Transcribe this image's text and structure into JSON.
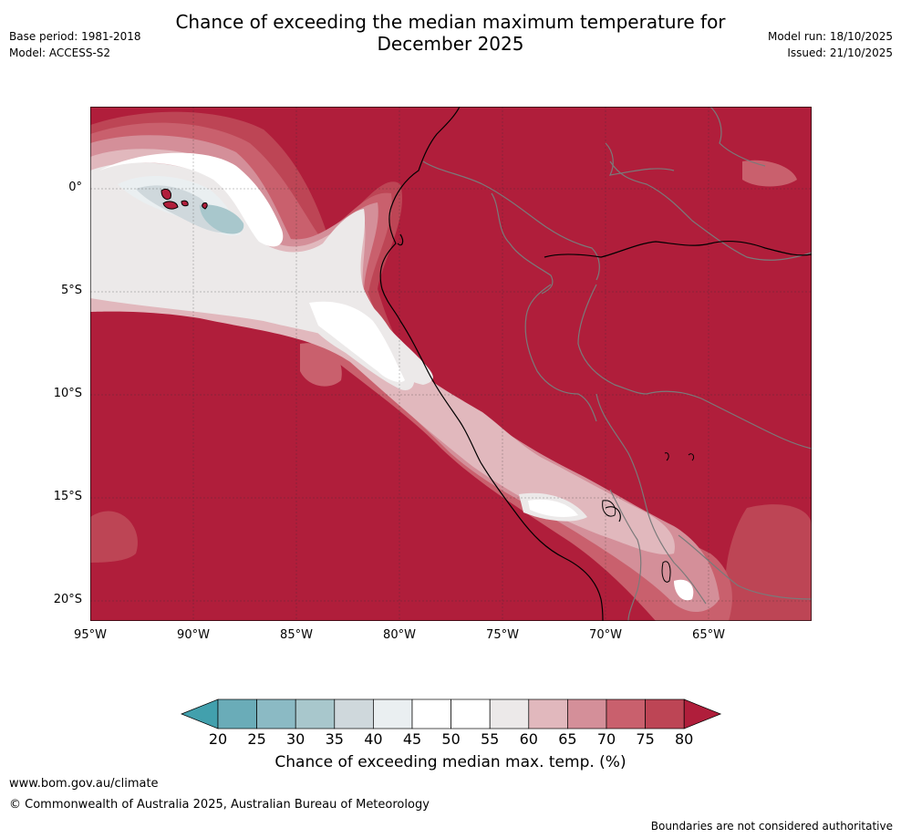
{
  "title_line1": "Chance of exceeding the median maximum temperature for",
  "title_line2": "December 2025",
  "meta": {
    "base_period": "Base period: 1981-2018",
    "model": "Model: ACCESS-S2",
    "model_run": "Model run: 18/10/2025",
    "issued": "Issued: 21/10/2025"
  },
  "map": {
    "lat_labels": [
      "0°",
      "5°S",
      "10°S",
      "15°S",
      "20°S"
    ],
    "lon_labels": [
      "95°W",
      "90°W",
      "85°W",
      "80°W",
      "75°W",
      "70°W",
      "65°W"
    ]
  },
  "colorbar": {
    "ticks": [
      "20",
      "25",
      "30",
      "35",
      "40",
      "45",
      "50",
      "55",
      "60",
      "65",
      "70",
      "75",
      "80"
    ],
    "colors": [
      "#42a0ad",
      "#6aacb8",
      "#8bbac4",
      "#a8c7cc",
      "#cfd8dc",
      "#eaeff1",
      "#ffffff",
      "#ffffff",
      "#ece9e9",
      "#e1b8bd",
      "#d48f99",
      "#c9606d",
      "#bd4555",
      "#b01e3b"
    ],
    "label": "Chance of exceeding median max. temp. (%)"
  },
  "footer": {
    "url": "www.bom.gov.au/climate",
    "copyright": "© Commonwealth of Australia 2025, Australian Bureau of Meteorology",
    "note": "Boundaries are not considered authoritative"
  }
}
